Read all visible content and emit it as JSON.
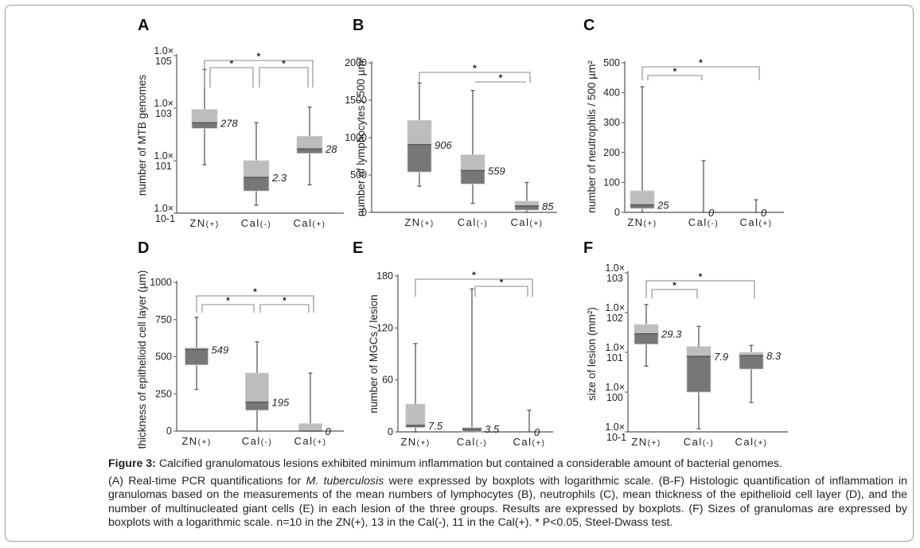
{
  "figure": {
    "caption_title_label": "Figure 3:",
    "caption_title_text": " Calcified granulomatous lesions exhibited minimum inflammation but contained a considerable amount of bacterial genomes.",
    "caption_body_part1": "(A) Real-time PCR quantifications for ",
    "caption_body_italic": "M. tuberculosis",
    "caption_body_part2": " were expressed by boxplots with logarithmic scale. (B-F) Histologic quantification of inflammation in granulomas based on the measurements of the mean numbers of lymphocytes (B), neutrophils (C), mean thickness of the epithelioid cell layer (D), and the number of multinucleated giant cells (E) in each lesion of the three groups. Results are expressed by boxplots. (F) Sizes of granulomas are expressed by boxplots with a logarithmic scale. n=10 in the ZN(+), 13 in the Cal(-), 11 in the Cal(+). * P<0.05, Steel-Dwass test."
  },
  "colors": {
    "box_upper": "#bdbdbd",
    "box_lower": "#777777",
    "whisker": "#5a5a5a",
    "axis": "#555555",
    "bracket": "#8a8a8a",
    "text": "#222222"
  },
  "chart_data": [
    {
      "panel": "A",
      "type": "boxplot",
      "scale": "log",
      "ylabel": "number of MTB genomes",
      "yticks": [
        {
          "value": 100000,
          "label1": "1.0×",
          "label2": "105"
        },
        {
          "value": 1000,
          "label1": "1.0×",
          "label2": "103"
        },
        {
          "value": 10,
          "label1": "1.0×",
          "label2": "101"
        },
        {
          "value": 0.1,
          "label1": "1.0×",
          "label2": "10-1"
        }
      ],
      "ylim": [
        0.1,
        100000
      ],
      "categories": [
        {
          "main": "ZN",
          "sub": "(+)"
        },
        {
          "main": "Cal",
          "sub": "(-)"
        },
        {
          "main": "Cal",
          "sub": "(+)"
        }
      ],
      "boxes": [
        {
          "min": 7,
          "q1": 170,
          "median": 278,
          "q3": 900,
          "max": 30000,
          "label": "278"
        },
        {
          "min": 0.2,
          "q1": 0.7,
          "median": 2.3,
          "q3": 10,
          "max": 280,
          "label": "2.3"
        },
        {
          "min": 1.2,
          "q1": 19,
          "median": 28,
          "q3": 85,
          "max": 1100,
          "label": "28"
        }
      ],
      "significance": [
        {
          "from": 0,
          "to": 1,
          "label": "*",
          "level": 1
        },
        {
          "from": 1,
          "to": 2,
          "label": "*",
          "level": 1
        },
        {
          "from": 0,
          "to": 2,
          "label": "*",
          "level": 2
        }
      ]
    },
    {
      "panel": "B",
      "type": "boxplot",
      "scale": "linear",
      "ylabel": "number of lymphocytes / 500 µm²",
      "yticks": [
        {
          "value": 0,
          "label1": "0"
        },
        {
          "value": 500,
          "label1": "500"
        },
        {
          "value": 1000,
          "label1": "1000"
        },
        {
          "value": 1500,
          "label1": "1500"
        },
        {
          "value": 2000,
          "label1": "2000"
        }
      ],
      "ylim": [
        0,
        2000
      ],
      "categories": [
        {
          "main": "ZN",
          "sub": "(+)"
        },
        {
          "main": "Cal",
          "sub": "(-)"
        },
        {
          "main": "Cal",
          "sub": "(+)"
        }
      ],
      "boxes": [
        {
          "min": 350,
          "q1": 540,
          "median": 906,
          "q3": 1230,
          "max": 1730,
          "label": "906"
        },
        {
          "min": 120,
          "q1": 380,
          "median": 559,
          "q3": 770,
          "max": 1630,
          "label": "559"
        },
        {
          "min": 0,
          "q1": 30,
          "median": 85,
          "q3": 150,
          "max": 400,
          "label": "85"
        }
      ],
      "significance": [
        {
          "from": 1,
          "to": 2,
          "label": "*",
          "level": 1
        },
        {
          "from": 0,
          "to": 2,
          "label": "*",
          "level": 2
        }
      ]
    },
    {
      "panel": "C",
      "type": "boxplot",
      "scale": "linear",
      "ylabel": "number of neutrophils / 500 µm²",
      "yticks": [
        {
          "value": 0,
          "label1": "0"
        },
        {
          "value": 100,
          "label1": "100"
        },
        {
          "value": 200,
          "label1": "200"
        },
        {
          "value": 300,
          "label1": "300"
        },
        {
          "value": 400,
          "label1": "400"
        },
        {
          "value": 500,
          "label1": "500"
        }
      ],
      "ylim": [
        0,
        500
      ],
      "categories": [
        {
          "main": "ZN",
          "sub": "(+)"
        },
        {
          "main": "Cal",
          "sub": "(-)"
        },
        {
          "main": "Cal",
          "sub": "(+)"
        }
      ],
      "boxes": [
        {
          "min": 0,
          "q1": 13,
          "median": 25,
          "q3": 72,
          "max": 420,
          "label": "25"
        },
        {
          "min": 0,
          "q1": 0,
          "median": 0,
          "q3": 0,
          "max": 173,
          "label": "0"
        },
        {
          "min": 0,
          "q1": 0,
          "median": 0,
          "q3": 0,
          "max": 42,
          "label": "0"
        }
      ],
      "significance": [
        {
          "from": 0,
          "to": 1,
          "label": "*",
          "level": 1
        },
        {
          "from": 0,
          "to": 2,
          "label": "*",
          "level": 2
        }
      ]
    },
    {
      "panel": "D",
      "type": "boxplot",
      "scale": "linear",
      "ylabel": "thickness of epithelioid cell layer (µm)",
      "yticks": [
        {
          "value": 0,
          "label1": "0"
        },
        {
          "value": 250,
          "label1": "250"
        },
        {
          "value": 500,
          "label1": "500"
        },
        {
          "value": 750,
          "label1": "750"
        },
        {
          "value": 1000,
          "label1": "1000"
        }
      ],
      "ylim": [
        0,
        1000
      ],
      "categories": [
        {
          "main": "ZN",
          "sub": "(+)"
        },
        {
          "main": "Cal",
          "sub": "(-)"
        },
        {
          "main": "Cal",
          "sub": "(+)"
        }
      ],
      "boxes": [
        {
          "min": 280,
          "q1": 445,
          "median": 549,
          "q3": 560,
          "max": 765,
          "label": "549"
        },
        {
          "min": 0,
          "q1": 140,
          "median": 195,
          "q3": 390,
          "max": 600,
          "label": "195"
        },
        {
          "min": 0,
          "q1": 0,
          "median": 0,
          "q3": 50,
          "max": 390,
          "label": "0"
        }
      ],
      "significance": [
        {
          "from": 0,
          "to": 1,
          "label": "*",
          "level": 1
        },
        {
          "from": 1,
          "to": 2,
          "label": "*",
          "level": 1
        },
        {
          "from": 0,
          "to": 2,
          "label": "*",
          "level": 2
        }
      ]
    },
    {
      "panel": "E",
      "type": "boxplot",
      "scale": "linear",
      "ylabel": "number of MGCs / lesion",
      "yticks": [
        {
          "value": 0,
          "label1": "0"
        },
        {
          "value": 60,
          "label1": "60"
        },
        {
          "value": 120,
          "label1": "120"
        },
        {
          "value": 180,
          "label1": "180"
        }
      ],
      "ylim": [
        0,
        180
      ],
      "categories": [
        {
          "main": "ZN",
          "sub": "(+)"
        },
        {
          "main": "Cal",
          "sub": "(-)"
        },
        {
          "main": "Cal",
          "sub": "(+)"
        }
      ],
      "boxes": [
        {
          "min": 0,
          "q1": 5,
          "median": 7.5,
          "q3": 32,
          "max": 102,
          "label": "7.5"
        },
        {
          "min": 0,
          "q1": 0,
          "median": 3.5,
          "q3": 5,
          "max": 165,
          "label": "3.5"
        },
        {
          "min": 0,
          "q1": 0,
          "median": 0,
          "q3": 0,
          "max": 25,
          "label": "0"
        }
      ],
      "significance": [
        {
          "from": 1,
          "to": 2,
          "label": "*",
          "level": 1
        },
        {
          "from": 0,
          "to": 2,
          "label": "*",
          "level": 2
        }
      ]
    },
    {
      "panel": "F",
      "type": "boxplot",
      "scale": "log",
      "ylabel": "size of lesion (mm²)",
      "yticks": [
        {
          "value": 1000,
          "label1": "1.0×",
          "label2": "103"
        },
        {
          "value": 100,
          "label1": "1.0×",
          "label2": "102"
        },
        {
          "value": 10,
          "label1": "1.0×",
          "label2": "101"
        },
        {
          "value": 1,
          "label1": "1.0×",
          "label2": "100"
        },
        {
          "value": 0.1,
          "label1": "1.0×",
          "label2": "10-1"
        }
      ],
      "ylim": [
        0.1,
        1000
      ],
      "categories": [
        {
          "main": "ZN",
          "sub": "(+)"
        },
        {
          "main": "Cal",
          "sub": "(-)"
        },
        {
          "main": "Cal",
          "sub": "(+)"
        }
      ],
      "boxes": [
        {
          "min": 4.5,
          "q1": 16,
          "median": 29.3,
          "q3": 50,
          "max": 160,
          "label": "29.3"
        },
        {
          "min": 0.12,
          "q1": 1,
          "median": 7.9,
          "q3": 14,
          "max": 45,
          "label": "7.9"
        },
        {
          "min": 0.55,
          "q1": 3.8,
          "median": 8.3,
          "q3": 10,
          "max": 15,
          "label": "8.3"
        }
      ],
      "significance": [
        {
          "from": 0,
          "to": 1,
          "label": "*",
          "level": 1
        },
        {
          "from": 0,
          "to": 2,
          "label": "*",
          "level": 2
        }
      ]
    }
  ]
}
